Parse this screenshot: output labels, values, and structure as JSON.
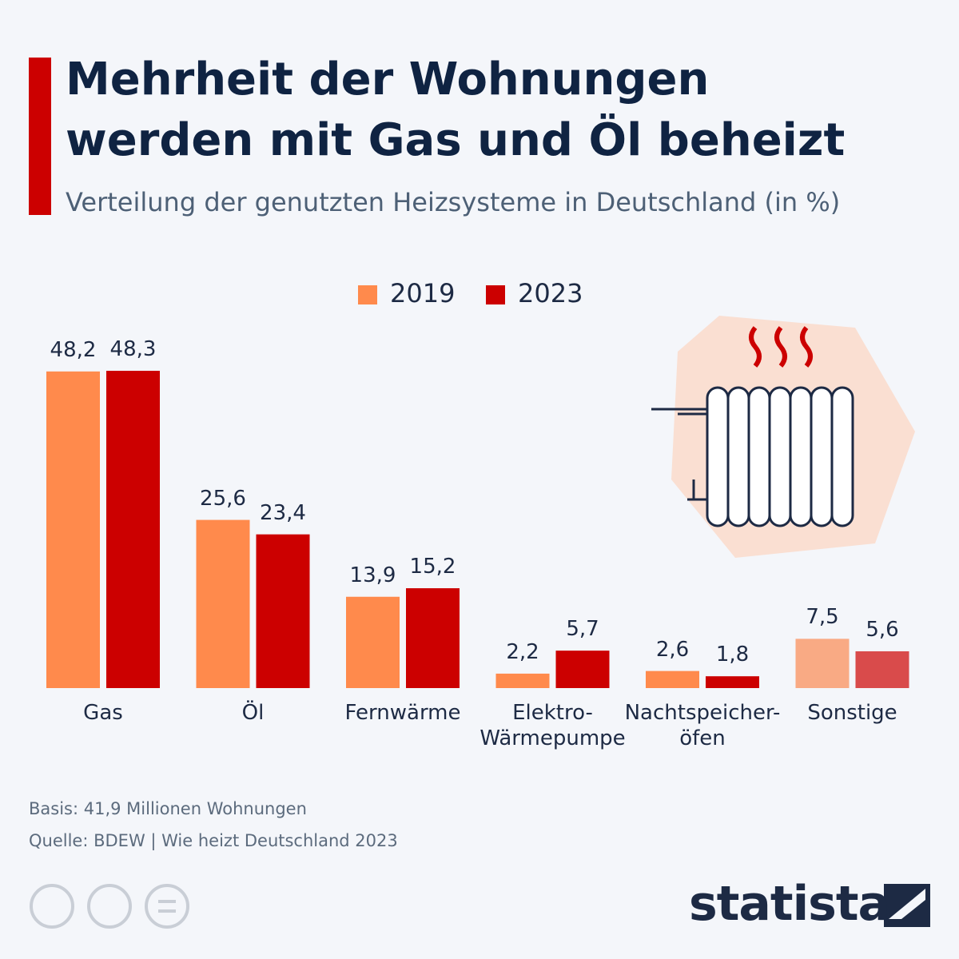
{
  "chart_data": {
    "type": "bar",
    "title": "Mehrheit der Wohnungen\nwerden mit Gas und Öl beheizt",
    "subtitle": "Verteilung der genutzten Heizsysteme in Deutschland (in %)",
    "categories": [
      "Gas",
      "Öl",
      "Fernwärme",
      "Elektro-\nWärmepumpe",
      "Nachtspeicher-\nöfen",
      "Sonstige"
    ],
    "series": [
      {
        "name": "2019",
        "color": "#ff8a4c",
        "colors": [
          "#ff8a4c",
          "#ff8a4c",
          "#ff8a4c",
          "#ff8a4c",
          "#ff8a4c",
          "#f9aa84"
        ],
        "values": [
          48.2,
          25.6,
          13.9,
          2.2,
          2.6,
          7.5
        ],
        "value_labels": [
          "48,2",
          "25,6",
          "13,9",
          "2,2",
          "2,6",
          "7,5"
        ]
      },
      {
        "name": "2023",
        "color": "#cc0000",
        "colors": [
          "#cc0000",
          "#cc0000",
          "#cc0000",
          "#cc0000",
          "#cc0000",
          "#d94b4b"
        ],
        "values": [
          48.3,
          23.4,
          15.2,
          5.7,
          1.8,
          5.6
        ],
        "value_labels": [
          "48,3",
          "23,4",
          "15,2",
          "5,7",
          "1,8",
          "5,6"
        ]
      }
    ],
    "notes": [
      "Basis: 41,9 Millionen Wohnungen",
      "Quelle: BDEW | Wie heizt Deutschland 2023"
    ],
    "brand": "statista"
  }
}
